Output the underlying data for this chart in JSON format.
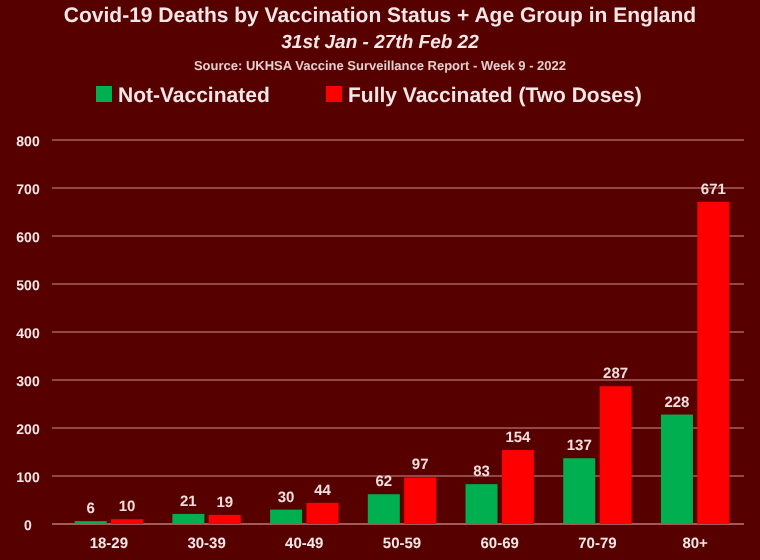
{
  "chart_data": {
    "type": "bar",
    "title": "Covid-19 Deaths by Vaccination Status + Age Group in England",
    "subtitle": "31st Jan - 27th Feb 22",
    "annotations": [
      "Source: UKHSA Vaccine Surveillance Report - Week 9 - 2022"
    ],
    "categories": [
      "18-29",
      "30-39",
      "40-49",
      "50-59",
      "60-69",
      "70-79",
      "80+"
    ],
    "series": [
      {
        "name": "Not-Vaccinated",
        "color": "#00b050",
        "values": [
          6,
          21,
          30,
          62,
          83,
          137,
          228
        ]
      },
      {
        "name": "Fully Vaccinated (Two Doses)",
        "color": "#ff0000",
        "values": [
          10,
          19,
          44,
          97,
          154,
          287,
          671
        ]
      }
    ],
    "ylim": [
      0,
      800
    ],
    "yticks": [
      0,
      100,
      200,
      300,
      400,
      500,
      600,
      700,
      800
    ],
    "grid": "y",
    "legend": "top",
    "data_labels": true
  }
}
